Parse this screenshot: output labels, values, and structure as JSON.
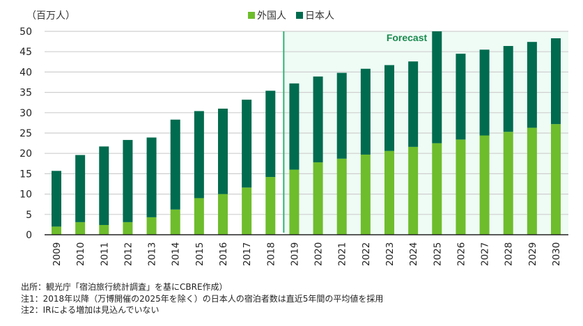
{
  "chart_data": {
    "type": "bar",
    "stacked": true,
    "title": "",
    "ylabel": "（百万人）",
    "xlabel": "",
    "ylim": [
      0,
      50
    ],
    "yticks": [
      0,
      5,
      10,
      15,
      20,
      25,
      30,
      35,
      40,
      45,
      50
    ],
    "grid": true,
    "legend_position": "top-center",
    "categories": [
      "2009",
      "2010",
      "2011",
      "2012",
      "2013",
      "2014",
      "2015",
      "2016",
      "2017",
      "2018",
      "2019",
      "2020",
      "2021",
      "2022",
      "2023",
      "2024",
      "2025",
      "2026",
      "2027",
      "2028",
      "2029",
      "2030"
    ],
    "series": [
      {
        "name": "外国人",
        "color": "#6ebd2c",
        "values": [
          2.0,
          3.1,
          2.4,
          3.1,
          4.3,
          6.2,
          9.0,
          10.0,
          11.6,
          14.2,
          16.0,
          17.8,
          18.7,
          19.7,
          20.6,
          21.6,
          22.5,
          23.4,
          24.4,
          25.3,
          26.3,
          27.2
        ]
      },
      {
        "name": "日本人",
        "color": "#006b4e",
        "values": [
          13.7,
          16.5,
          19.3,
          20.2,
          19.6,
          22.1,
          21.4,
          21.0,
          21.6,
          21.2,
          21.2,
          21.1,
          21.1,
          21.1,
          21.1,
          21.0,
          27.5,
          21.1,
          21.1,
          21.1,
          21.1,
          21.1
        ]
      }
    ],
    "totals": [
      15.7,
      19.6,
      21.7,
      23.3,
      23.9,
      28.3,
      30.4,
      31.0,
      33.2,
      35.4,
      37.2,
      38.9,
      39.8,
      40.8,
      41.7,
      42.6,
      50.0,
      44.5,
      45.5,
      46.4,
      47.4,
      48.3
    ],
    "forecast": {
      "label": "Forecast",
      "start_category": "2019",
      "end_category": "2030",
      "shade_color": "#effbf5",
      "line_color": "#2db36f",
      "label_color": "#1a8a4e"
    }
  },
  "notes": {
    "source": "出所：観光庁「宿泊旅行統計調査」を基にCBRE作成）",
    "note1": "注1：2018年以降（万博開催の2025年を除く）の日本人の宿泊者数は直近5年間の平均値を採用",
    "note2": "注2：IRによる増加は見込んでいない"
  }
}
